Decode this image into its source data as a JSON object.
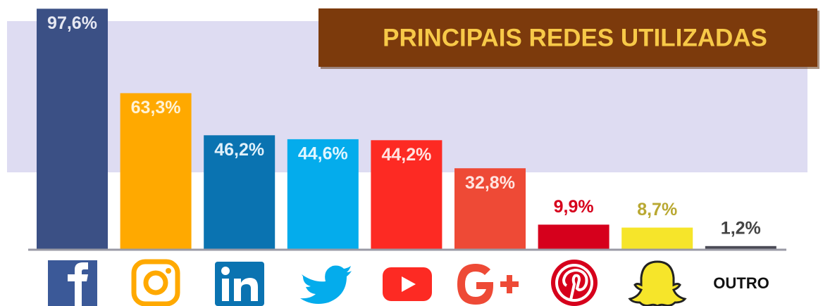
{
  "chart_data": {
    "type": "bar",
    "title": "PRINCIPAIS REDES UTILIZADAS",
    "categories": [
      null,
      null,
      null,
      null,
      null,
      null,
      null,
      null,
      "OUTRO"
    ],
    "values": [
      97.6,
      63.3,
      46.2,
      44.6,
      44.2,
      32.8,
      9.9,
      8.7,
      1.2
    ],
    "value_labels": [
      "97,6%",
      "63,3%",
      "46,2%",
      "44,6%",
      "44,2%",
      "32,8%",
      "9,9%",
      "8,7%",
      "1,2%"
    ],
    "colors": [
      "#3b5085",
      "#ffa900",
      "#0a73b1",
      "#04acec",
      "#fd2a23",
      "#ee4a36",
      "#d6001c",
      "#f6e52a",
      "#4a4a55"
    ],
    "label_colors": [
      "#e6e8f2",
      "#fff3d6",
      "#e0f0fa",
      "#e0f6ff",
      "#ffe2e0",
      "#ffe4e0",
      "#d6001c",
      "#b9a832",
      "#444444"
    ],
    "ylim": [
      0,
      100
    ]
  }
}
